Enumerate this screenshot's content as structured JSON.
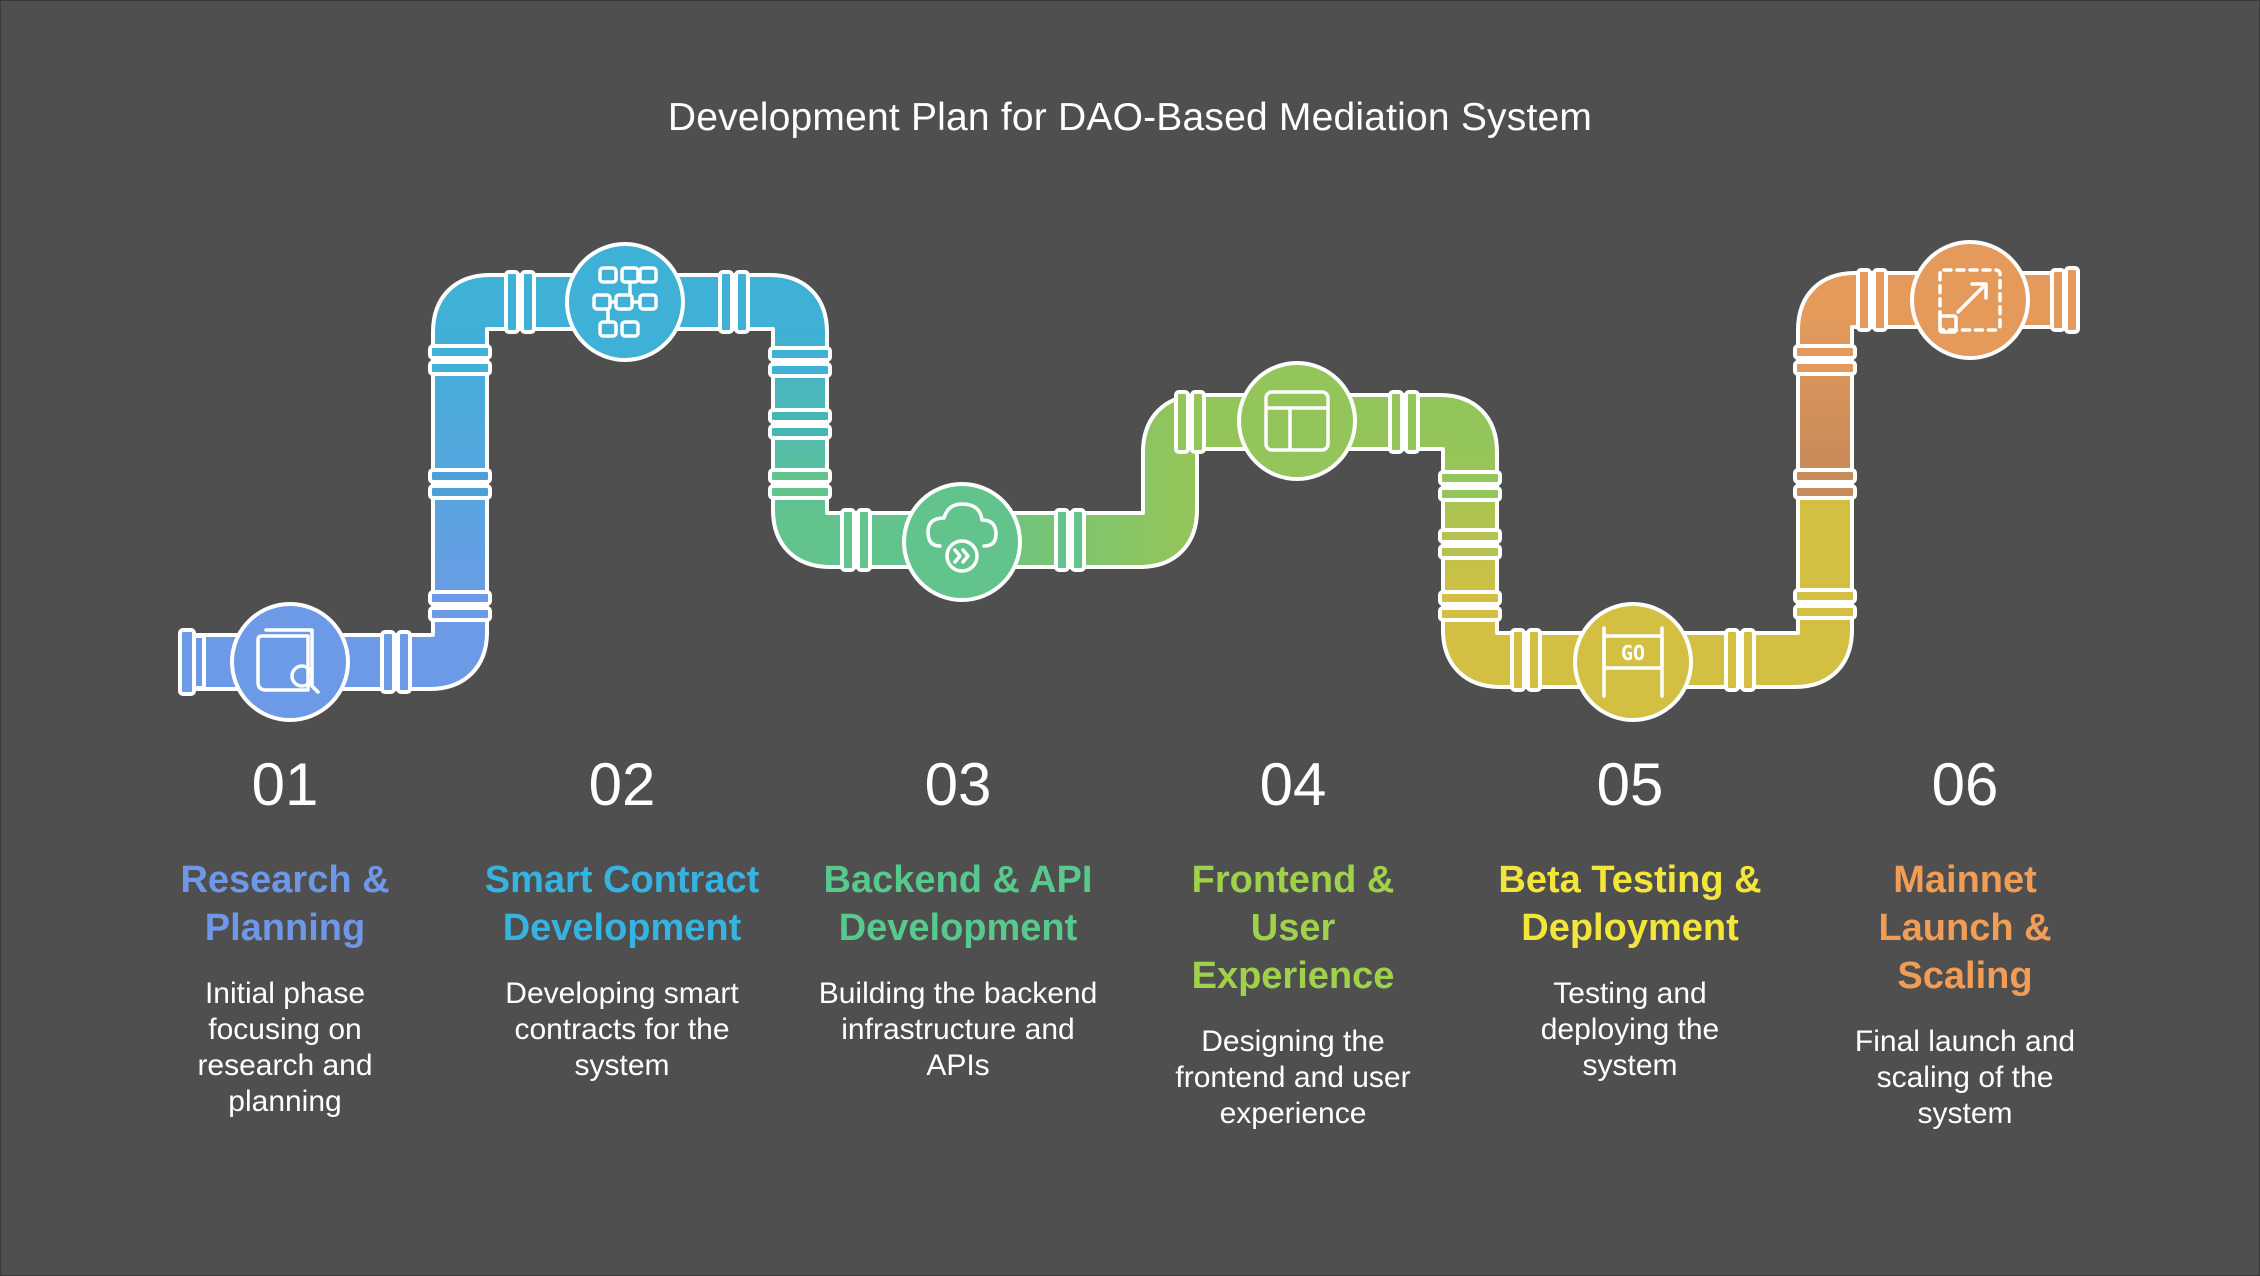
{
  "title": "Development Plan for DAO-Based Mediation System",
  "steps": [
    {
      "number": "01",
      "name_lines": [
        "Research &",
        "Planning"
      ],
      "description_lines": [
        "Initial phase",
        "focusing on",
        "research and",
        "planning"
      ],
      "color": "#6f97e8",
      "icon": "book-search-icon"
    },
    {
      "number": "02",
      "name_lines": [
        "Smart Contract",
        "Development"
      ],
      "description_lines": [
        "Developing smart",
        "contracts for the",
        "system"
      ],
      "color": "#37b3e0",
      "icon": "flowchart-icon"
    },
    {
      "number": "03",
      "name_lines": [
        "Backend & API",
        "Development"
      ],
      "description_lines": [
        "Building the backend",
        "infrastructure and",
        "APIs"
      ],
      "color": "#57c98d",
      "icon": "cloud-forward-icon"
    },
    {
      "number": "04",
      "name_lines": [
        "Frontend &",
        "User",
        "Experience"
      ],
      "description_lines": [
        "Designing the",
        "frontend and user",
        "experience"
      ],
      "color": "#9fd24a",
      "icon": "layout-window-icon"
    },
    {
      "number": "05",
      "name_lines": [
        "Beta Testing &",
        "Deployment"
      ],
      "description_lines": [
        "Testing and",
        "deploying the",
        "system"
      ],
      "color": "#f3e63a",
      "icon": "go-sign-icon"
    },
    {
      "number": "06",
      "name_lines": [
        "Mainnet",
        "Launch &",
        "Scaling"
      ],
      "description_lines": [
        "Final launch and",
        "scaling of the",
        "system"
      ],
      "color": "#f29d55",
      "icon": "expand-scale-icon"
    }
  ],
  "pipe_colors": {
    "blue": "#6d9ae6",
    "cyan": "#3fb0d6",
    "green": "#62c48c",
    "lime": "#93c55a",
    "yellow": "#d3c043",
    "orange": "#e39a5b"
  },
  "icon_glyphs": {
    "go_sign": "GO"
  }
}
